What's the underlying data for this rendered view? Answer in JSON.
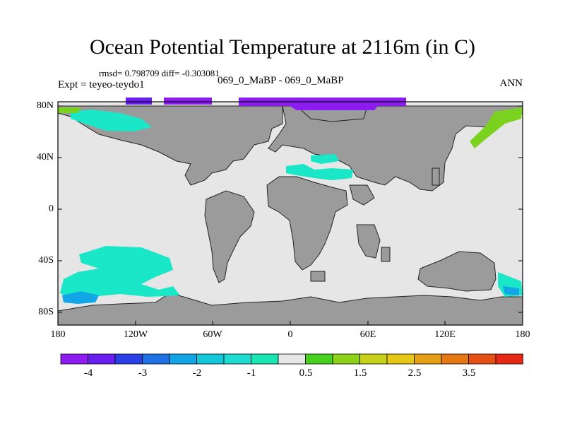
{
  "title": "Ocean Potential Temperature at 2116m (in C)",
  "stats_line": "rmsd= 0.798709 diff= -0.303081",
  "experiment_line": "Expt = teyeo-teydo1",
  "comparison_line": "069_0_MaBP - 069_0_MaBP",
  "season": "ANN",
  "lat_ticks": [
    "80N",
    "40N",
    "0",
    "40S",
    "80S"
  ],
  "lon_ticks": [
    "180",
    "120W",
    "60W",
    "0",
    "60E",
    "120E",
    "180"
  ],
  "colorbar": {
    "colors": [
      "#8c1cf0",
      "#6a1ef0",
      "#2840e6",
      "#1f72e6",
      "#12a6e6",
      "#14c8dc",
      "#1edcd0",
      "#1ae6b4",
      "#e6e6e6",
      "#46d21e",
      "#8cd218",
      "#c8d218",
      "#e6c814",
      "#e6a014",
      "#e67814",
      "#e65014",
      "#e62814"
    ],
    "labels": [
      "-4",
      "-3",
      "-2",
      "-1",
      "0.5",
      "1.5",
      "2.5",
      "3.5"
    ]
  },
  "map_colors": {
    "land": "#9b9b9b",
    "ocean_neutral": "#e6e6e6",
    "anomaly_cyan": "#1ae6c8",
    "anomaly_blue": "#12a6e6",
    "anomaly_violet": "#8c1cf0",
    "anomaly_indigo": "#6a1ef0",
    "anomaly_green": "#7ad21e"
  }
}
